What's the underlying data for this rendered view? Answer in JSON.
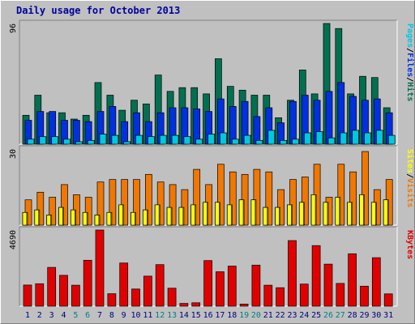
{
  "title": "Daily usage for October 2013",
  "colors": {
    "hits": "#007050",
    "files": "#0030e0",
    "pages": "#00c8e0",
    "visits": "#f07800",
    "sites": "#ffff00",
    "kbytes": "#e00000",
    "weekend_day": "#008080",
    "weekday": "#000080",
    "panel_bg": "#c0c0c0"
  },
  "panels": [
    {
      "id": "top",
      "max_label": "96",
      "labels": [
        {
          "text": "Hits",
          "color": "#007050"
        },
        {
          "text": "Files",
          "color": "#0030e0"
        },
        {
          "text": "Pages",
          "color": "#00c8e0"
        }
      ],
      "separator": " / "
    },
    {
      "id": "mid",
      "max_label": "30",
      "labels": [
        {
          "text": "Visits",
          "color": "#f07800"
        },
        {
          "text": "Sites",
          "color": "#ffff00"
        }
      ],
      "separator": " / "
    },
    {
      "id": "bot",
      "max_label": "4690",
      "labels": [
        {
          "text": "KBytes",
          "color": "#e00000"
        }
      ],
      "separator": ""
    }
  ],
  "chart_data": [
    {
      "type": "bar",
      "panel": "top",
      "ymax": 96,
      "categories": [
        "1",
        "2",
        "3",
        "4",
        "5",
        "6",
        "7",
        "8",
        "9",
        "10",
        "11",
        "12",
        "13",
        "14",
        "15",
        "16",
        "17",
        "18",
        "19",
        "20",
        "21",
        "22",
        "23",
        "24",
        "25",
        "26",
        "27",
        "28",
        "29",
        "30",
        "31"
      ],
      "series": [
        {
          "name": "Hits",
          "values": [
            23,
            39,
            25,
            25,
            20,
            23,
            49,
            39,
            27,
            35,
            32,
            55,
            42,
            45,
            45,
            40,
            68,
            46,
            43,
            39,
            39,
            21,
            35,
            59,
            40,
            96,
            92,
            40,
            54,
            53,
            29
          ]
        },
        {
          "name": "Files",
          "values": [
            19,
            26,
            26,
            19,
            19,
            18,
            26,
            30,
            18,
            25,
            18,
            25,
            29,
            29,
            28,
            26,
            36,
            30,
            34,
            22,
            29,
            17,
            34,
            39,
            35,
            42,
            49,
            38,
            35,
            36,
            25
          ]
        },
        {
          "name": "Pages",
          "values": [
            4,
            6,
            6,
            4,
            2,
            3,
            8,
            7,
            2,
            7,
            6,
            7,
            7,
            6,
            4,
            8,
            9,
            4,
            7,
            3,
            11,
            3,
            4,
            9,
            10,
            5,
            9,
            11,
            9,
            11,
            7
          ]
        }
      ]
    },
    {
      "type": "bar",
      "panel": "mid",
      "ymax": 30,
      "categories": [
        "1",
        "2",
        "3",
        "4",
        "5",
        "6",
        "7",
        "8",
        "9",
        "10",
        "11",
        "12",
        "13",
        "14",
        "15",
        "16",
        "17",
        "18",
        "19",
        "20",
        "21",
        "22",
        "23",
        "24",
        "25",
        "26",
        "27",
        "28",
        "29",
        "30",
        "31"
      ],
      "series": [
        {
          "name": "Visits",
          "values": [
            10,
            13,
            11,
            16,
            12,
            11,
            17,
            18,
            18,
            18,
            20,
            17,
            16,
            14,
            22,
            16,
            24,
            21,
            20,
            22,
            21,
            14,
            18,
            19,
            24,
            11,
            24,
            21,
            29,
            14,
            18
          ]
        },
        {
          "name": "Sites",
          "values": [
            5,
            6,
            4,
            7,
            6,
            5,
            4,
            5,
            8,
            5,
            6,
            8,
            7,
            7,
            8,
            9,
            9,
            8,
            10,
            10,
            7,
            7,
            8,
            9,
            12,
            9,
            11,
            9,
            12,
            9,
            10
          ]
        }
      ]
    },
    {
      "type": "bar",
      "panel": "bot",
      "ymax": 4690,
      "categories": [
        "1",
        "2",
        "3",
        "4",
        "5",
        "6",
        "7",
        "8",
        "9",
        "10",
        "11",
        "12",
        "13",
        "14",
        "15",
        "16",
        "17",
        "18",
        "19",
        "20",
        "21",
        "22",
        "23",
        "24",
        "25",
        "26",
        "27",
        "28",
        "29",
        "30",
        "31"
      ],
      "series": [
        {
          "name": "KBytes",
          "values": [
            1300,
            1380,
            2390,
            1900,
            1290,
            2830,
            4690,
            770,
            2660,
            1060,
            1850,
            2560,
            1110,
            170,
            210,
            2810,
            2120,
            2470,
            130,
            2530,
            1290,
            1140,
            4040,
            1360,
            3730,
            2590,
            1400,
            3230,
            1230,
            2990,
            760
          ]
        }
      ]
    }
  ],
  "x_axis": {
    "days": [
      "1",
      "2",
      "3",
      "4",
      "5",
      "6",
      "7",
      "8",
      "9",
      "10",
      "11",
      "12",
      "13",
      "14",
      "15",
      "16",
      "17",
      "18",
      "19",
      "20",
      "21",
      "22",
      "23",
      "24",
      "25",
      "26",
      "27",
      "28",
      "29",
      "30",
      "31"
    ],
    "weekend": [
      5,
      6,
      12,
      13,
      19,
      20,
      26,
      27
    ]
  }
}
